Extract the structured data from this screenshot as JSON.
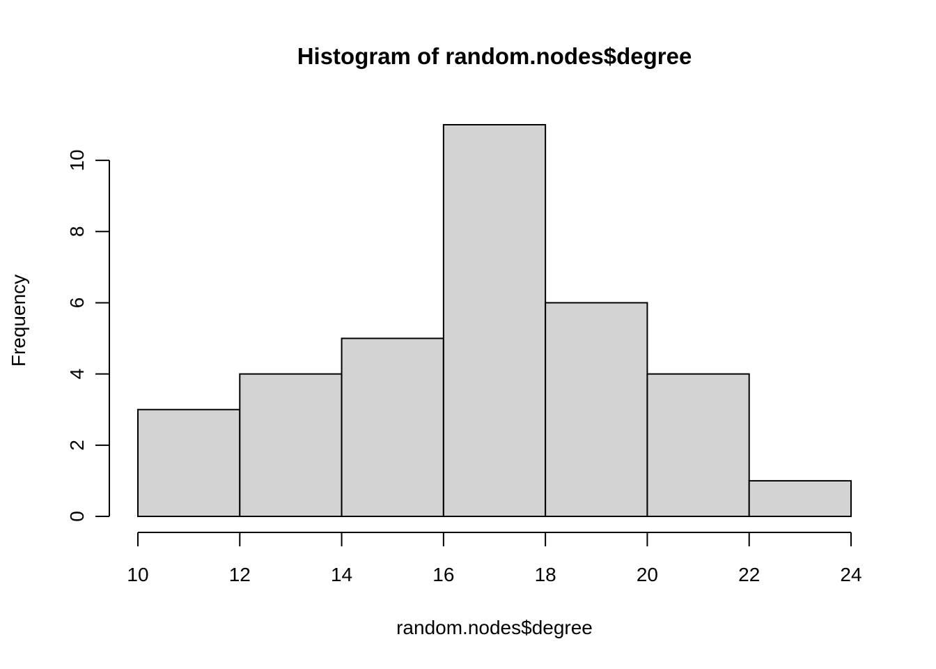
{
  "chart_data": {
    "type": "bar",
    "title": "Histogram of random.nodes$degree",
    "xlabel": "random.nodes$degree",
    "ylabel": "Frequency",
    "bins": [
      {
        "from": 10,
        "to": 12,
        "count": 3
      },
      {
        "from": 12,
        "to": 14,
        "count": 4
      },
      {
        "from": 14,
        "to": 16,
        "count": 5
      },
      {
        "from": 16,
        "to": 18,
        "count": 11
      },
      {
        "from": 18,
        "to": 20,
        "count": 6
      },
      {
        "from": 20,
        "to": 22,
        "count": 4
      },
      {
        "from": 22,
        "to": 24,
        "count": 1
      }
    ],
    "x_ticks": [
      "10",
      "12",
      "14",
      "16",
      "18",
      "20",
      "22",
      "24"
    ],
    "y_ticks": [
      "0",
      "2",
      "4",
      "6",
      "8",
      "10"
    ],
    "xlim": [
      10,
      24
    ],
    "ylim": [
      0,
      11
    ],
    "grid": false,
    "colors": {
      "bar_fill": "#d3d3d3",
      "bar_stroke": "#000000"
    }
  }
}
